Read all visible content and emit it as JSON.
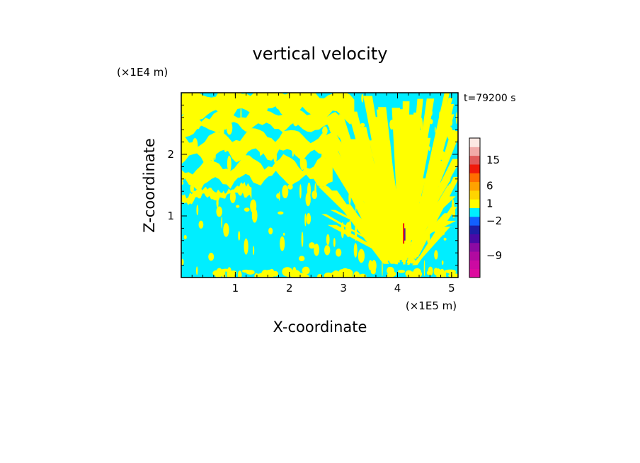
{
  "chart_data": {
    "type": "heatmap",
    "title": "vertical velocity",
    "xlabel": "X-coordinate",
    "ylabel": "Z-coordinate",
    "x_unit": "(×1E5 m)",
    "y_unit": "(×1E4 m)",
    "time_label": "t=79200 s",
    "xlim": [
      0,
      5.12
    ],
    "ylim": [
      0,
      3.0
    ],
    "x_ticks": [
      {
        "value": 1,
        "label": "1"
      },
      {
        "value": 2,
        "label": "2"
      },
      {
        "value": 3,
        "label": "3"
      },
      {
        "value": 4,
        "label": "4"
      },
      {
        "value": 5,
        "label": "5"
      }
    ],
    "y_ticks": [
      {
        "value": 1,
        "label": "1"
      },
      {
        "value": 2,
        "label": "2"
      }
    ],
    "colorbar": {
      "levels": [
        {
          "color": "#dd0a9e"
        },
        {
          "color": "#cc0aa2"
        },
        {
          "color": "#b10aa0"
        },
        {
          "color": "#8c0aa3"
        },
        {
          "color": "#4a0aa5"
        },
        {
          "color": "#1d1ea7"
        },
        {
          "color": "#1260ff"
        },
        {
          "color": "#00eeff"
        },
        {
          "color": "#ffff00"
        },
        {
          "color": "#ffd400"
        },
        {
          "color": "#ffa200"
        },
        {
          "color": "#ff6e00"
        },
        {
          "color": "#f01a0a"
        },
        {
          "color": "#e15a5a"
        },
        {
          "color": "#f2aaa8"
        },
        {
          "color": "#fde8e3"
        }
      ],
      "labels": [
        {
          "label": "15",
          "level_index": 13
        },
        {
          "label": "6",
          "level_index": 10
        },
        {
          "label": "1",
          "level_index": 8
        },
        {
          "label": "−2",
          "level_index": 6
        },
        {
          "label": "−9",
          "level_index": 2
        }
      ]
    },
    "field_colors": {
      "negative": "#00eeff",
      "positive": "#ffff00",
      "strong_updraft": "#f01a0a",
      "strong_downdraft": "#4a0aa5"
    }
  }
}
